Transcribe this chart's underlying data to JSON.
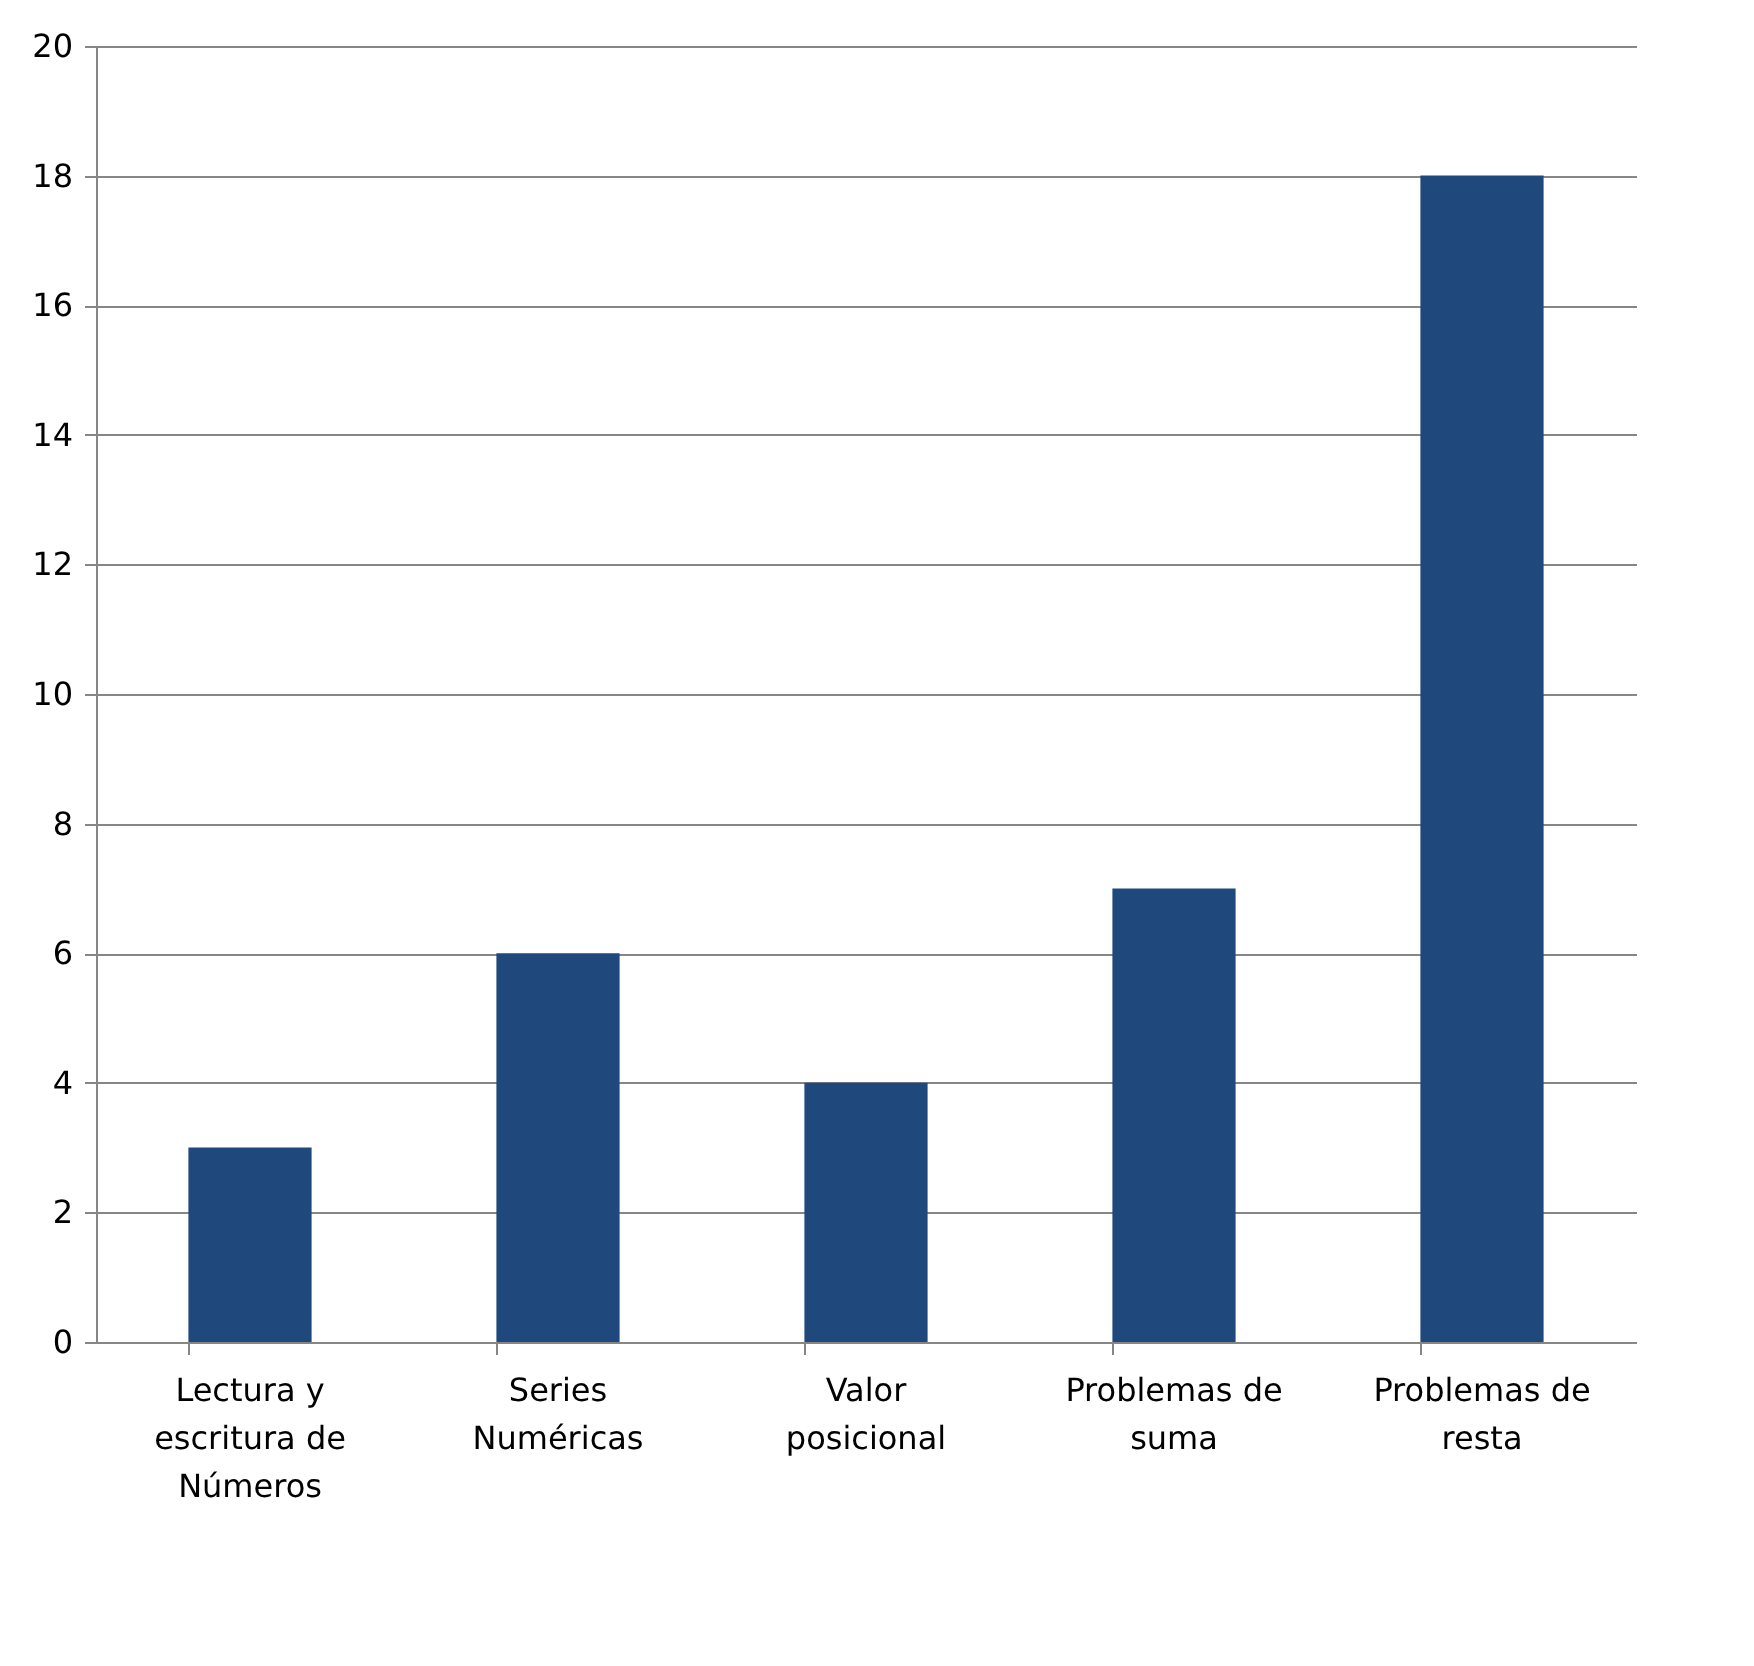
{
  "chart_data": {
    "type": "bar",
    "categories": [
      "Lectura y escritura de Números",
      "Series Numéricas",
      "Valor posicional",
      "Problemas de suma",
      "Problemas de resta"
    ],
    "values": [
      3,
      6,
      4,
      7,
      18
    ],
    "color": "#1f497d",
    "ylim": [
      0,
      20
    ],
    "yticks": [
      0,
      2,
      4,
      6,
      8,
      10,
      12,
      14,
      16,
      18,
      20
    ],
    "grid": "y"
  }
}
